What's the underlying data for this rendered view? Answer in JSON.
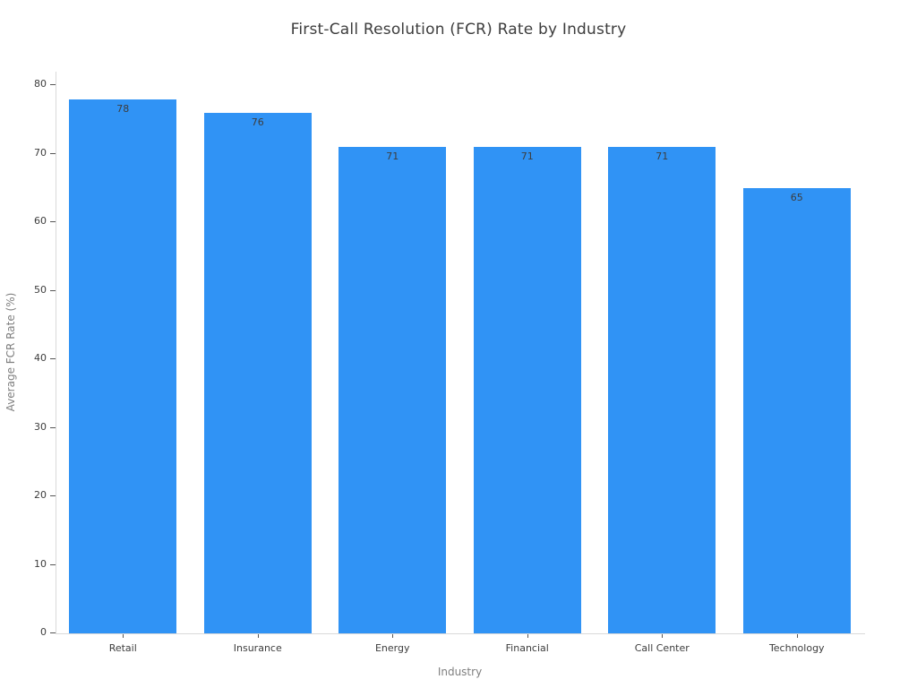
{
  "chart_data": {
    "type": "bar",
    "title": "First-Call Resolution (FCR) Rate by Industry",
    "categories": [
      "Retail",
      "Insurance",
      "Energy",
      "Financial",
      "Call Center",
      "Technology"
    ],
    "values": [
      78,
      76,
      71,
      71,
      71,
      65
    ],
    "value_labels": [
      "78",
      "76",
      "71",
      "71",
      "71",
      "65"
    ],
    "xlabel": "Industry",
    "ylabel": "Average FCR Rate (%)",
    "ylim": [
      0,
      82
    ],
    "yticks": [
      0,
      10,
      20,
      30,
      40,
      50,
      60,
      70,
      80
    ],
    "grid": false,
    "legend_visible": false,
    "bar_color": "#3093f5",
    "bar_width_fraction": 0.8
  },
  "colors": {
    "background": "#ffffff",
    "title_text": "#3d3d3d",
    "tick_label_text": "#3d3d3d",
    "axis_title_text": "#7f7f7f",
    "spine": "#d9d9d9",
    "tick_mark": "#555555",
    "bar_fill": "#3093f5",
    "value_label_text": "#3d3d3d"
  }
}
